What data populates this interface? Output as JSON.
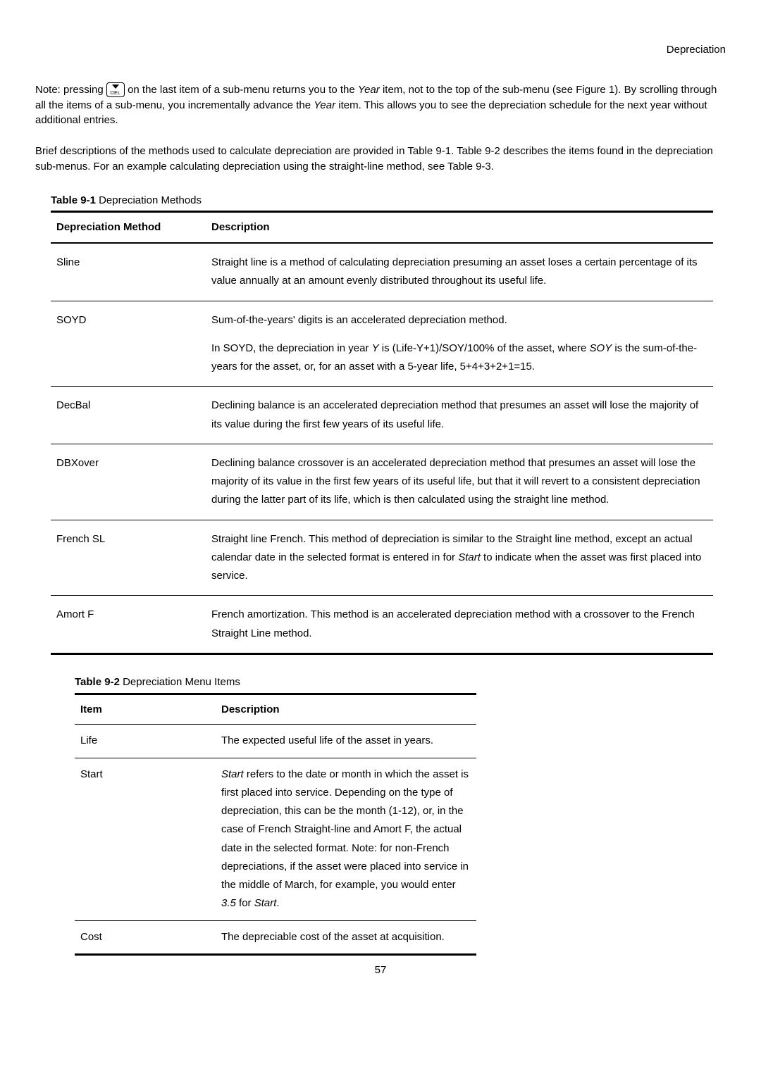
{
  "header_right": "Depreciation",
  "intro": {
    "p1_prefix": "Note: pressing ",
    "p1_after_icon": " on the last item of a sub-menu returns you to the ",
    "p1_year": "Year",
    "p1_mid": " item, not to the top of the sub-menu (see Figure 1). By scrolling through all the items of a sub-menu, you incrementally advance the ",
    "p1_year2": "Year",
    "p1_end": " item. This allows you to see the depreciation schedule for the next year without additional entries.",
    "p2": "Brief descriptions of the methods used to calculate depreciation are provided in Table 9-1. Table 9-2 describes the items found in the depreciation sub-menus. For an example calculating depreciation using the straight-line method, see Table 9-3."
  },
  "key_icon_label": "DEL",
  "table1": {
    "caption_bold": "Table 9-1",
    "caption_rest": " Depreciation Methods",
    "head_method": "Depreciation Method",
    "head_desc": "Description",
    "rows": {
      "sline": {
        "name": "Sline",
        "desc": "Straight line is a method of calculating depreciation presuming an asset loses a certain percentage of its value annually at an amount evenly distributed throughout its useful life."
      },
      "soyd": {
        "name": "SOYD",
        "d1": "Sum-of-the-years' digits is an accelerated depreciation method.",
        "d2a": "In SOYD, the depreciation in year ",
        "d2_y": "Y",
        "d2b": " is (Life-Y+1)/SOY/100% of the asset, where ",
        "d2_soy": "SOY",
        "d2c": " is the sum-of-the-years for the asset, or, for an asset with a 5-year life, 5+4+3+2+1=15."
      },
      "decbal": {
        "name": "DecBal",
        "desc": "Declining balance is an accelerated depreciation method that presumes an asset will lose the majority of its value during the first few years of its useful life."
      },
      "dbxover": {
        "name": "DBXover",
        "desc": "Declining balance crossover is an accelerated depreciation method that presumes an asset will lose the majority of its value in the first few years of its useful life, but that it will revert to a consistent depreciation during the latter part of its life, which is then calculated using the straight line method."
      },
      "frenchsl": {
        "name": "French SL",
        "d_a": "Straight line French. This method of depreciation is similar to the Straight line method, except an actual calendar date in the selected format is entered in for ",
        "d_start": "Start",
        "d_b": " to indicate when the asset was first placed into service."
      },
      "amortf": {
        "name": "Amort F",
        "desc": "French amortization. This method is an accelerated depreciation method with a crossover to the French Straight Line method."
      }
    }
  },
  "table2": {
    "caption_bold": "Table 9-2",
    "caption_rest": " Depreciation Menu Items",
    "head_item": "Item",
    "head_desc": "Description",
    "rows": {
      "life": {
        "name": "Life",
        "desc": "The expected useful life of the asset in years."
      },
      "start": {
        "name": "Start",
        "d_start": "Start",
        "d_a": " refers to the date or month in which the asset is first placed into service. Depending on the type of depreciation, this can be the month (1-12), or, in the case of French Straight-line and Amort F, the actual date in the selected format. Note: for non-French depreciations, if the asset were placed into service in the middle of March, for example, you would enter ",
        "d_35": "3.5",
        "d_for": " for ",
        "d_start2": "Start",
        "d_dot": "."
      },
      "cost": {
        "name": "Cost",
        "desc": "The depreciable cost of the asset at acquisition."
      }
    }
  },
  "page_number": "57"
}
